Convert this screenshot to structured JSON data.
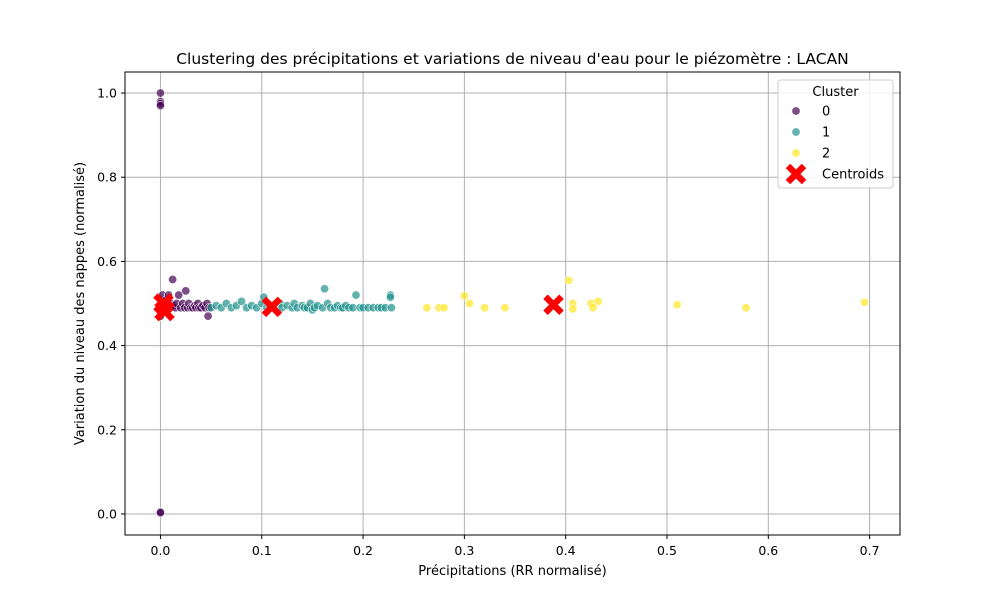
{
  "chart_data": {
    "type": "scatter",
    "title": "Clustering des précipitations et variations de niveau d'eau pour le piézomètre : LACAN",
    "xlabel": "Précipitations (RR normalisé)",
    "ylabel": "Variation du niveau des nappes (normalisé)",
    "xlim": [
      -0.035,
      0.73
    ],
    "ylim": [
      -0.05,
      1.05
    ],
    "xticks": [
      0.0,
      0.1,
      0.2,
      0.3,
      0.4,
      0.5,
      0.6,
      0.7
    ],
    "xtick_labels": [
      "0.0",
      "0.1",
      "0.2",
      "0.3",
      "0.4",
      "0.5",
      "0.6",
      "0.7"
    ],
    "yticks": [
      0.0,
      0.2,
      0.4,
      0.6,
      0.8,
      1.0
    ],
    "ytick_labels": [
      "0.0",
      "0.2",
      "0.4",
      "0.6",
      "0.8",
      "1.0"
    ],
    "grid": true,
    "legend": {
      "title": "Cluster",
      "placement": "top-right",
      "entries": [
        {
          "label": "0",
          "color": "#440154",
          "marker": "circle"
        },
        {
          "label": "1",
          "color": "#21918c",
          "marker": "circle"
        },
        {
          "label": "2",
          "color": "#fde725",
          "marker": "circle"
        },
        {
          "label": "Centroids",
          "color": "#ff0000",
          "marker": "x"
        }
      ]
    },
    "series": [
      {
        "name": "0",
        "color": "#440154",
        "points": [
          [
            0.0,
            1.0
          ],
          [
            0.0,
            0.98
          ],
          [
            0.0,
            0.975
          ],
          [
            0.0,
            0.97
          ],
          [
            0.0,
            0.005
          ],
          [
            0.0,
            0.003
          ],
          [
            0.0,
            0.49
          ],
          [
            0.0,
            0.5
          ],
          [
            0.0,
            0.51
          ],
          [
            0.0,
            0.48
          ],
          [
            0.0,
            0.47
          ],
          [
            0.002,
            0.52
          ],
          [
            0.003,
            0.495
          ],
          [
            0.005,
            0.5
          ],
          [
            0.005,
            0.485
          ],
          [
            0.006,
            0.51
          ],
          [
            0.008,
            0.52
          ],
          [
            0.01,
            0.49
          ],
          [
            0.01,
            0.5
          ],
          [
            0.012,
            0.557
          ],
          [
            0.013,
            0.495
          ],
          [
            0.015,
            0.49
          ],
          [
            0.016,
            0.5
          ],
          [
            0.018,
            0.52
          ],
          [
            0.02,
            0.49
          ],
          [
            0.022,
            0.5
          ],
          [
            0.024,
            0.49
          ],
          [
            0.025,
            0.53
          ],
          [
            0.027,
            0.49
          ],
          [
            0.028,
            0.5
          ],
          [
            0.03,
            0.49
          ],
          [
            0.032,
            0.49
          ],
          [
            0.034,
            0.495
          ],
          [
            0.035,
            0.49
          ],
          [
            0.037,
            0.5
          ],
          [
            0.038,
            0.49
          ],
          [
            0.04,
            0.49
          ],
          [
            0.042,
            0.495
          ],
          [
            0.044,
            0.49
          ],
          [
            0.046,
            0.5
          ],
          [
            0.047,
            0.47
          ],
          [
            0.048,
            0.49
          ]
        ]
      },
      {
        "name": "1",
        "color": "#21918c",
        "points": [
          [
            0.05,
            0.49
          ],
          [
            0.055,
            0.495
          ],
          [
            0.06,
            0.49
          ],
          [
            0.065,
            0.5
          ],
          [
            0.07,
            0.49
          ],
          [
            0.075,
            0.495
          ],
          [
            0.08,
            0.505
          ],
          [
            0.085,
            0.49
          ],
          [
            0.09,
            0.495
          ],
          [
            0.095,
            0.49
          ],
          [
            0.1,
            0.5
          ],
          [
            0.102,
            0.515
          ],
          [
            0.105,
            0.49
          ],
          [
            0.108,
            0.495
          ],
          [
            0.112,
            0.49
          ],
          [
            0.118,
            0.5
          ],
          [
            0.12,
            0.49
          ],
          [
            0.125,
            0.495
          ],
          [
            0.13,
            0.49
          ],
          [
            0.132,
            0.5
          ],
          [
            0.135,
            0.49
          ],
          [
            0.14,
            0.495
          ],
          [
            0.142,
            0.49
          ],
          [
            0.145,
            0.49
          ],
          [
            0.148,
            0.5
          ],
          [
            0.15,
            0.485
          ],
          [
            0.152,
            0.49
          ],
          [
            0.155,
            0.495
          ],
          [
            0.16,
            0.49
          ],
          [
            0.162,
            0.535
          ],
          [
            0.165,
            0.5
          ],
          [
            0.168,
            0.49
          ],
          [
            0.172,
            0.49
          ],
          [
            0.175,
            0.495
          ],
          [
            0.178,
            0.49
          ],
          [
            0.18,
            0.49
          ],
          [
            0.183,
            0.495
          ],
          [
            0.186,
            0.49
          ],
          [
            0.19,
            0.49
          ],
          [
            0.193,
            0.52
          ],
          [
            0.197,
            0.49
          ],
          [
            0.2,
            0.49
          ],
          [
            0.205,
            0.49
          ],
          [
            0.21,
            0.49
          ],
          [
            0.215,
            0.49
          ],
          [
            0.218,
            0.49
          ],
          [
            0.222,
            0.49
          ],
          [
            0.227,
            0.52
          ],
          [
            0.227,
            0.515
          ],
          [
            0.228,
            0.49
          ]
        ]
      },
      {
        "name": "2",
        "color": "#fde725",
        "points": [
          [
            0.263,
            0.49
          ],
          [
            0.275,
            0.49
          ],
          [
            0.28,
            0.49
          ],
          [
            0.3,
            0.518
          ],
          [
            0.305,
            0.5
          ],
          [
            0.32,
            0.49
          ],
          [
            0.34,
            0.49
          ],
          [
            0.403,
            0.555
          ],
          [
            0.407,
            0.5
          ],
          [
            0.407,
            0.487
          ],
          [
            0.425,
            0.5
          ],
          [
            0.427,
            0.49
          ],
          [
            0.432,
            0.505
          ],
          [
            0.51,
            0.497
          ],
          [
            0.578,
            0.49
          ],
          [
            0.695,
            0.503
          ]
        ]
      }
    ],
    "centroids": {
      "name": "Centroids",
      "color": "#ff0000",
      "points": [
        [
          0.003,
          0.5
        ],
        [
          0.004,
          0.482
        ],
        [
          0.11,
          0.492
        ],
        [
          0.388,
          0.497
        ]
      ]
    }
  }
}
